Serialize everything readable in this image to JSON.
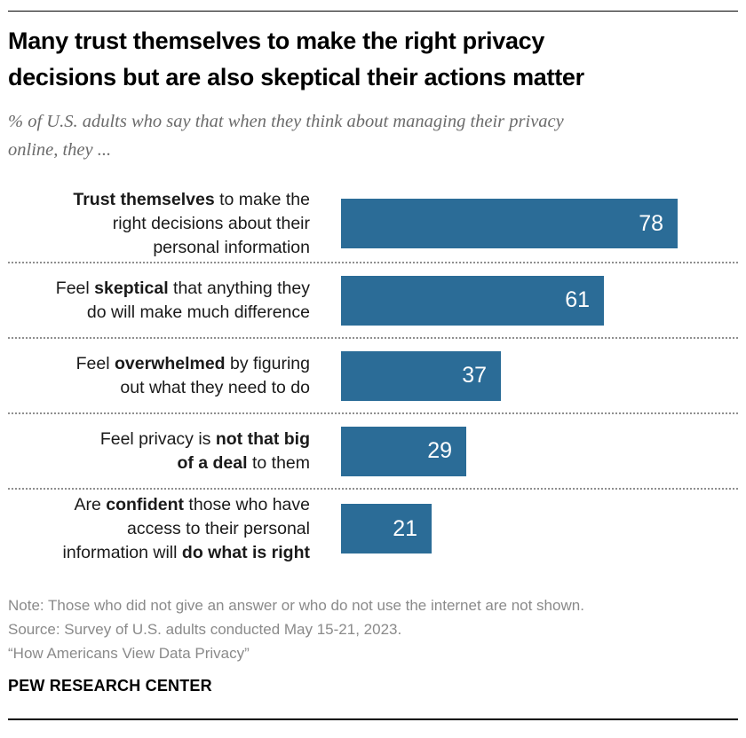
{
  "header": {
    "title_display": "Many trust themselves to make the right privacy\ndecisions but are also skeptical their actions matter",
    "subtitle_display": "% of U.S. adults who say that when they think about managing their privacy\nonline, they ..."
  },
  "chart_data": {
    "type": "bar",
    "orientation": "horizontal",
    "title": "Many trust themselves to make the right privacy decisions but are also skeptical their actions matter",
    "subtitle": "% of U.S. adults who say that when they think about managing their privacy online, they ...",
    "categories": [
      "Trust themselves to make the right decisions about their personal information",
      "Feel skeptical that anything they do will make much difference",
      "Feel overwhelmed by figuring out what they need to do",
      "Feel privacy is not that big of a deal to them",
      "Are confident those who have access to their personal information will do what is right"
    ],
    "values": [
      78,
      61,
      37,
      29,
      21
    ],
    "value_labels_inside_bar": true,
    "bar_color": "#2B6C97",
    "value_label_color": "#ffffff",
    "xlim": [
      0,
      92
    ],
    "grid": false,
    "legend": false,
    "label_lines": [
      [
        [
          {
            "text": "Trust themselves",
            "bold": true
          },
          {
            "text": " to make the",
            "bold": false
          }
        ],
        [
          {
            "text": "right decisions about their",
            "bold": false
          }
        ],
        [
          {
            "text": "personal information",
            "bold": false
          }
        ]
      ],
      [
        [
          {
            "text": "Feel ",
            "bold": false
          },
          {
            "text": "skeptical",
            "bold": true
          },
          {
            "text": " that anything they",
            "bold": false
          }
        ],
        [
          {
            "text": "do will make much difference",
            "bold": false
          }
        ]
      ],
      [
        [
          {
            "text": "Feel ",
            "bold": false
          },
          {
            "text": "overwhelmed",
            "bold": true
          },
          {
            "text": " by figuring",
            "bold": false
          }
        ],
        [
          {
            "text": "out what they need to do",
            "bold": false
          }
        ]
      ],
      [
        [
          {
            "text": "Feel privacy is ",
            "bold": false
          },
          {
            "text": "not that big",
            "bold": true
          }
        ],
        [
          {
            "text": "of a deal",
            "bold": true
          },
          {
            "text": " to them",
            "bold": false
          }
        ]
      ],
      [
        [
          {
            "text": "Are ",
            "bold": false
          },
          {
            "text": "confident",
            "bold": true
          },
          {
            "text": " those who have",
            "bold": false
          }
        ],
        [
          {
            "text": "access to their personal",
            "bold": false
          }
        ],
        [
          {
            "text": "information will ",
            "bold": false
          },
          {
            "text": "do what is right",
            "bold": true
          }
        ]
      ]
    ]
  },
  "footer": {
    "note": "Note: Those who did not give an answer or who do not use the internet are not shown.",
    "source": "Source: Survey of U.S. adults conducted May 15-21, 2023.",
    "quote": "“How Americans View Data Privacy”",
    "brand": "PEW RESEARCH CENTER"
  }
}
